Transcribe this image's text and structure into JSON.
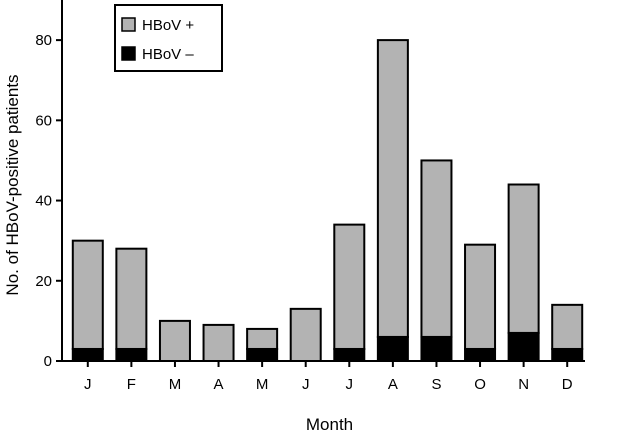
{
  "chart_data": {
    "type": "bar",
    "stacked": true,
    "xlabel": "Month",
    "ylabel": "No. of HBoV-positive patients",
    "ylim": [
      0,
      90
    ],
    "yticks": [
      0,
      20,
      40,
      60,
      80
    ],
    "categories": [
      "J",
      "F",
      "M",
      "A",
      "M",
      "J",
      "J",
      "A",
      "S",
      "O",
      "N",
      "D"
    ],
    "series": [
      {
        "name": "HBoV –",
        "color": "#000000",
        "values": [
          3,
          3,
          0,
          0,
          3,
          0,
          3,
          6,
          6,
          3,
          7,
          3
        ]
      },
      {
        "name": "HBoV +",
        "color": "#b3b3b3",
        "values": [
          27,
          25,
          10,
          9,
          5,
          13,
          31,
          74,
          44,
          26,
          37,
          11
        ]
      }
    ],
    "legend": {
      "placement": "top-left",
      "entries": [
        "HBoV +",
        "HBoV –"
      ]
    },
    "grid": false
  }
}
